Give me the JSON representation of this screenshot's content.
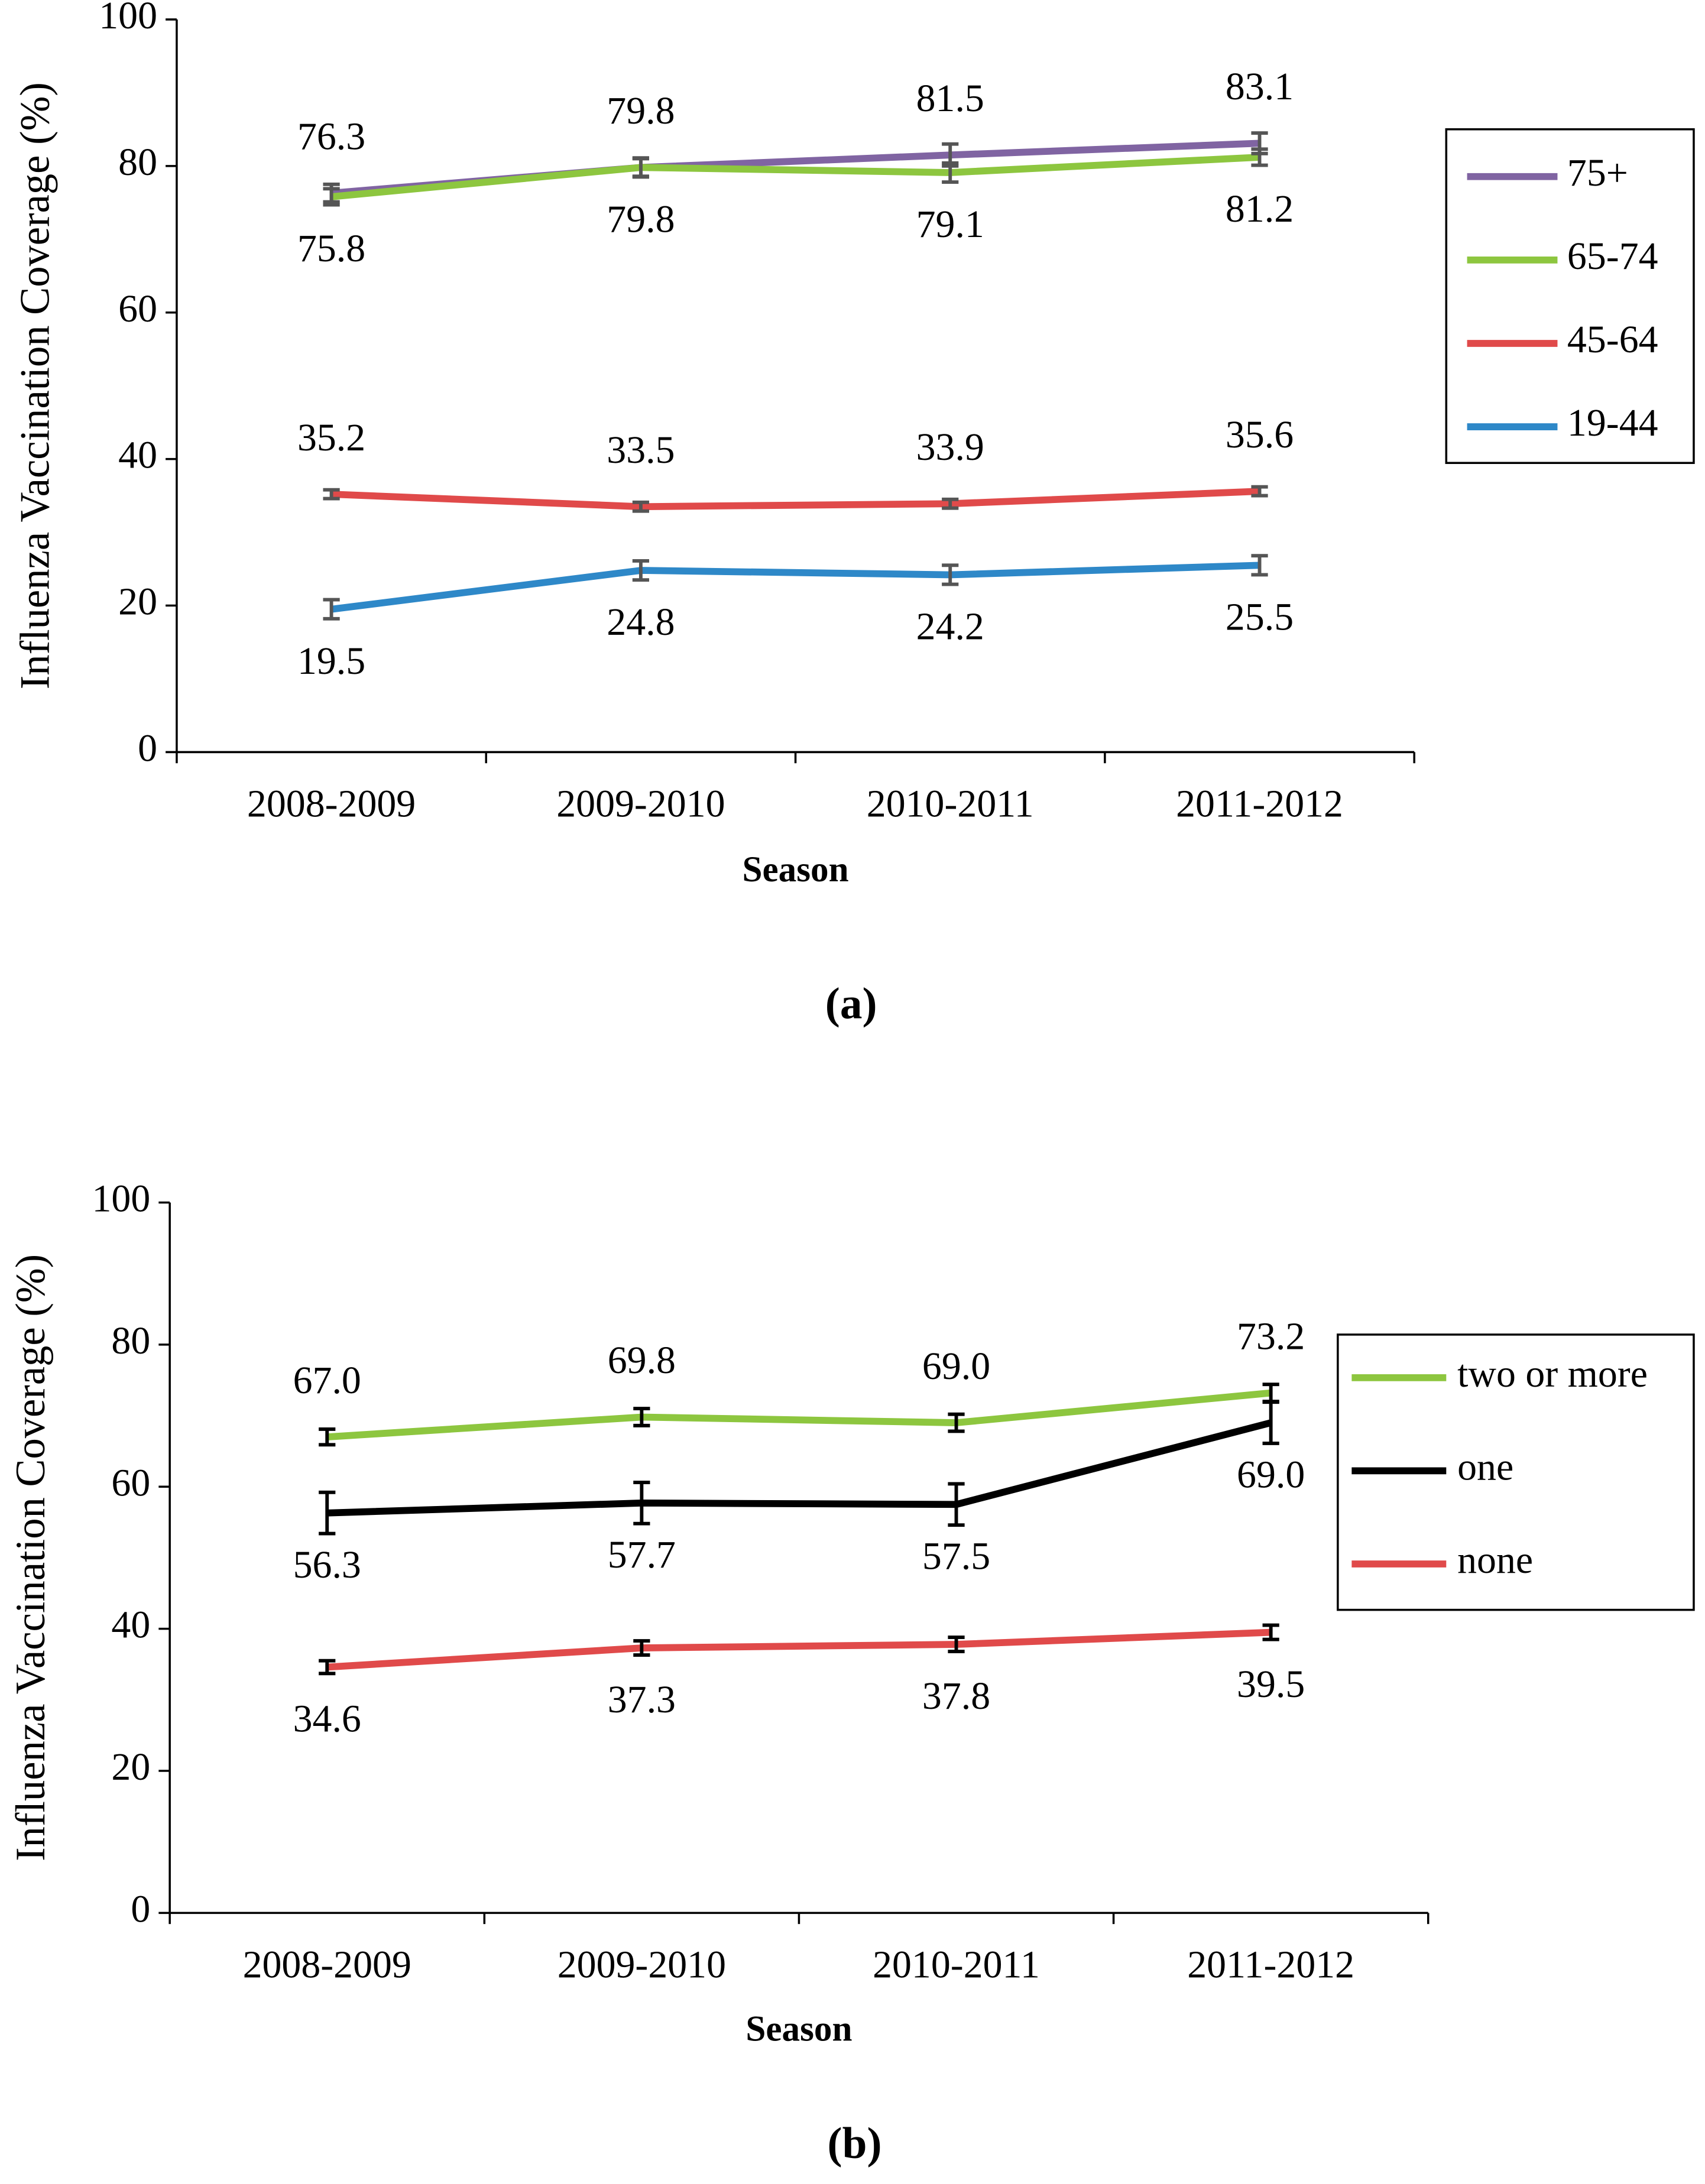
{
  "chart_data": [
    {
      "type": "line",
      "y_label": "Influenza Vaccination Coverage (%)",
      "x_label": "Season",
      "caption": "(a)",
      "categories": [
        "2008-2009",
        "2009-2010",
        "2010-2011",
        "2011-2012"
      ],
      "ylim": [
        0,
        100
      ],
      "yticks": [
        0,
        20,
        40,
        60,
        80,
        100
      ],
      "error_color": "#555555",
      "series": [
        {
          "name": "75+",
          "color": "#8064a2",
          "values": [
            76.3,
            79.8,
            81.5,
            83.1
          ],
          "errors": [
            1.2,
            1.3,
            1.5,
            1.4
          ]
        },
        {
          "name": "65-74",
          "color": "#8dc63f",
          "values": [
            75.8,
            79.8,
            79.1,
            81.2
          ],
          "errors": [
            1.1,
            1.2,
            1.3,
            1.1
          ]
        },
        {
          "name": "45-64",
          "color": "#e04a4a",
          "values": [
            35.2,
            33.5,
            33.9,
            35.6
          ],
          "errors": [
            0.6,
            0.6,
            0.6,
            0.6
          ]
        },
        {
          "name": "19-44",
          "color": "#2e88c8",
          "values": [
            19.5,
            24.8,
            24.2,
            25.5
          ],
          "errors": [
            1.3,
            1.3,
            1.3,
            1.3
          ]
        }
      ]
    },
    {
      "type": "line",
      "y_label": "Influenza Vaccination Coverage (%)",
      "x_label": "Season",
      "caption": "(b)",
      "categories": [
        "2008-2009",
        "2009-2010",
        "2010-2011",
        "2011-2012"
      ],
      "ylim": [
        0,
        100
      ],
      "yticks": [
        0,
        20,
        40,
        60,
        80,
        100
      ],
      "error_color": "#000000",
      "series": [
        {
          "name": "two or more",
          "color": "#8dc63f",
          "values": [
            67,
            69.8,
            69,
            73.2
          ],
          "value_labels": [
            "67.0",
            "69.8",
            "69.0",
            "73.2"
          ],
          "errors": [
            1.1,
            1.2,
            1.2,
            1.2
          ]
        },
        {
          "name": "one",
          "color": "#000000",
          "values": [
            56.3,
            57.7,
            57.5,
            69
          ],
          "value_labels": [
            "56.3",
            "57.7",
            "57.5",
            "69.0"
          ],
          "errors": [
            2.9,
            2.9,
            2.9,
            2.9
          ]
        },
        {
          "name": "none",
          "color": "#e04a4a",
          "values": [
            34.6,
            37.3,
            37.8,
            39.5
          ],
          "value_labels": [
            "34.6",
            "37.3",
            "37.8",
            "39.5"
          ],
          "errors": [
            0.9,
            1.0,
            1.0,
            1.0
          ]
        }
      ]
    }
  ]
}
